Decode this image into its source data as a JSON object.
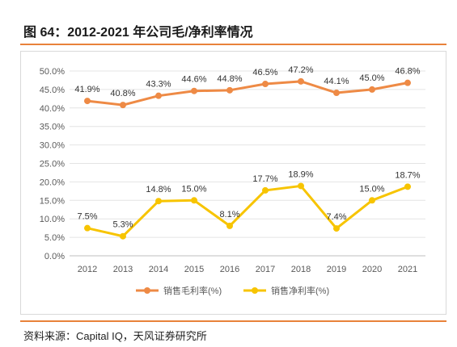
{
  "figure": {
    "title": "图 64：2012-2021 年公司毛/净利率情况",
    "source": "资料来源：Capital IQ，天风证券研究所"
  },
  "colors": {
    "accent": "#e8823a",
    "series_gross": "#ee8a45",
    "series_net": "#f7c400",
    "axis_text": "#595959",
    "grid": "#e4e4e4"
  },
  "chart_data": {
    "type": "line",
    "title": "",
    "xlabel": "",
    "ylabel": "",
    "x": [
      "2012",
      "2013",
      "2014",
      "2015",
      "2016",
      "2017",
      "2018",
      "2019",
      "2020",
      "2021"
    ],
    "ylim": [
      0,
      50
    ],
    "yticks": [
      "0.0%",
      "5.0%",
      "10.0%",
      "15.0%",
      "20.0%",
      "25.0%",
      "30.0%",
      "35.0%",
      "40.0%",
      "45.0%",
      "50.0%"
    ],
    "grid": true,
    "legend": "bottom",
    "series": [
      {
        "name": "销售毛利率(%)",
        "values": [
          41.9,
          40.8,
          43.3,
          44.6,
          44.8,
          46.5,
          47.2,
          44.1,
          45.0,
          46.8
        ],
        "labels": [
          "41.9%",
          "40.8%",
          "43.3%",
          "44.6%",
          "44.8%",
          "46.5%",
          "47.2%",
          "44.1%",
          "45.0%",
          "46.8%"
        ]
      },
      {
        "name": "销售净利率(%)",
        "values": [
          7.5,
          5.3,
          14.8,
          15.0,
          8.1,
          17.7,
          18.9,
          7.4,
          15.0,
          18.7
        ],
        "labels": [
          "7.5%",
          "5.3%",
          "14.8%",
          "15.0%",
          "8.1%",
          "17.7%",
          "18.9%",
          "7.4%",
          "15.0%",
          "18.7%"
        ]
      }
    ]
  }
}
